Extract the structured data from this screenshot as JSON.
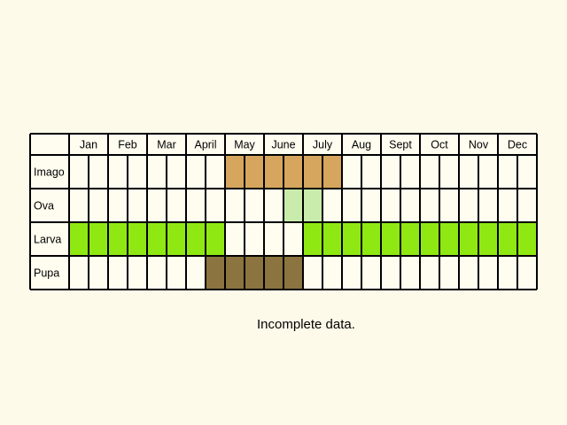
{
  "months": [
    "Jan",
    "Feb",
    "Mar",
    "April",
    "May",
    "June",
    "July",
    "Aug",
    "Sept",
    "Oct",
    "Nov",
    "Dec"
  ],
  "stages": [
    {
      "label": "Imago",
      "color": "#d6a65e",
      "cells": [
        0,
        0,
        0,
        0,
        0,
        0,
        0,
        0,
        1,
        1,
        1,
        1,
        1,
        1,
        0,
        0,
        0,
        0,
        0,
        0,
        0,
        0,
        0,
        0
      ]
    },
    {
      "label": "Ova",
      "color": "#c9ecac",
      "cells": [
        0,
        0,
        0,
        0,
        0,
        0,
        0,
        0,
        0,
        0,
        0,
        1,
        1,
        0,
        0,
        0,
        0,
        0,
        0,
        0,
        0,
        0,
        0,
        0
      ]
    },
    {
      "label": "Larva",
      "color": "#90e812",
      "cells": [
        1,
        1,
        1,
        1,
        1,
        1,
        1,
        1,
        0,
        0,
        0,
        0,
        1,
        1,
        1,
        1,
        1,
        1,
        1,
        1,
        1,
        1,
        1,
        1
      ]
    },
    {
      "label": "Pupa",
      "color": "#8c7440",
      "cells": [
        0,
        0,
        0,
        0,
        0,
        0,
        0,
        1,
        1,
        1,
        1,
        1,
        0,
        0,
        0,
        0,
        0,
        0,
        0,
        0,
        0,
        0,
        0,
        0
      ]
    }
  ],
  "note": "Incomplete data."
}
